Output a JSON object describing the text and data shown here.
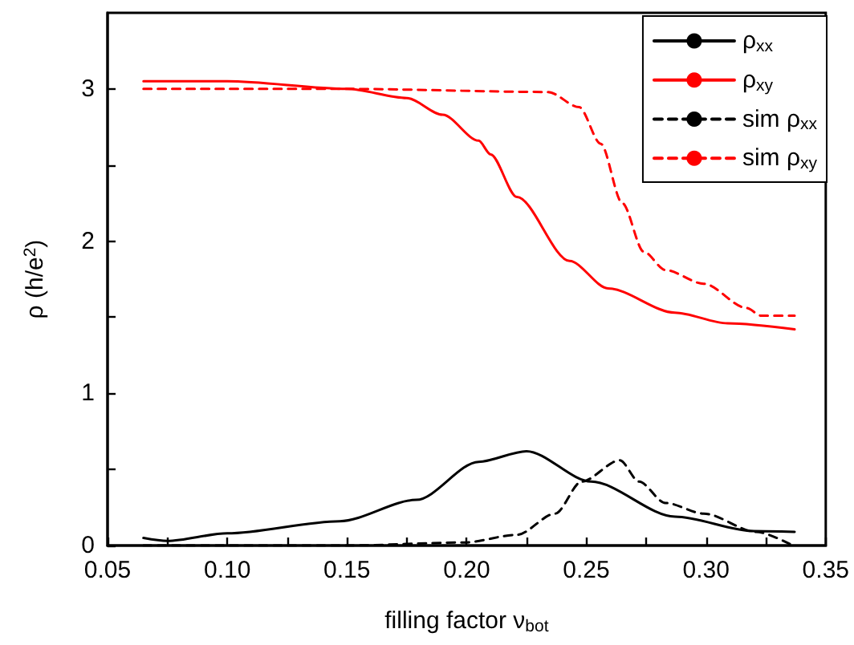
{
  "chart_data": {
    "type": "line",
    "xlabel": "filling factor ν$_{bot}$",
    "ylabel": "ρ (h/e$^{2}$)",
    "xlim": [
      0.05,
      0.35
    ],
    "xticks": [
      0.05,
      {
        "value": 0.075,
        "label": null
      },
      "0.10",
      {
        "value": 0.125,
        "label": null
      },
      0.15,
      {
        "value": 0.175,
        "label": null
      },
      "0.20",
      {
        "value": 0.225,
        "label": null
      },
      0.25,
      {
        "value": 0.275,
        "label": null
      },
      "0.30",
      {
        "value": 0.325,
        "label": null
      },
      0.35
    ],
    "ylim": [
      0,
      3.5
    ],
    "yticks": [
      0,
      {
        "value": 0.5,
        "label": null
      },
      1,
      {
        "value": 1.5,
        "label": null
      },
      2,
      {
        "value": 2.5,
        "label": null
      },
      3
    ],
    "grid": false,
    "legend": "top right",
    "marker": "none",
    "series": [
      {
        "name": "ρ$_{xx}$",
        "color": "#000000",
        "line_style": "solid",
        "x": [
          0.065,
          0.075,
          0.1,
          0.147,
          0.179,
          0.205,
          0.225,
          0.252,
          0.287,
          0.32,
          0.337
        ],
        "values": [
          0.05,
          0.03,
          0.08,
          0.16,
          0.3,
          0.55,
          0.62,
          0.42,
          0.19,
          0.095,
          0.09
        ]
      },
      {
        "name": "ρ$_{xy}$",
        "color": "#ff0000",
        "line_style": "solid",
        "x": [
          0.065,
          0.1,
          0.15,
          0.175,
          0.19,
          0.205,
          0.21,
          0.221,
          0.243,
          0.259,
          0.287,
          0.309,
          0.337
        ],
        "values": [
          3.05,
          3.05,
          3.0,
          2.94,
          2.83,
          2.66,
          2.57,
          2.29,
          1.87,
          1.69,
          1.53,
          1.46,
          1.42
        ]
      },
      {
        "name": "sim ρ$_{xx}$",
        "color": "#000000",
        "line_style": "dashed",
        "x": [
          0.065,
          0.15,
          0.199,
          0.221,
          0.237,
          0.248,
          0.264,
          0.272,
          0.283,
          0.299,
          0.321,
          0.335
        ],
        "values": [
          0,
          0,
          0.02,
          0.07,
          0.21,
          0.42,
          0.56,
          0.42,
          0.28,
          0.21,
          0.09,
          0.01
        ]
      },
      {
        "name": "sim ρ$_{xy}$",
        "color": "#ff0000",
        "line_style": "dashed",
        "x": [
          0.065,
          0.15,
          0.234,
          0.247,
          0.256,
          0.265,
          0.274,
          0.283,
          0.299,
          0.317,
          0.323,
          0.337
        ],
        "values": [
          3.0,
          3.0,
          2.98,
          2.88,
          2.64,
          2.25,
          1.93,
          1.81,
          1.72,
          1.56,
          1.51,
          1.51
        ]
      }
    ]
  }
}
